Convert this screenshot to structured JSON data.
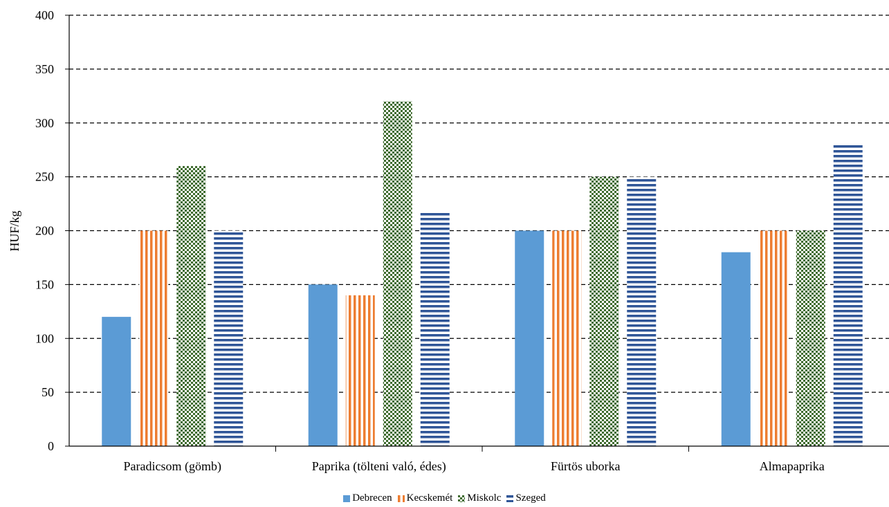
{
  "chart_data": {
    "type": "bar",
    "title": "",
    "xlabel": "",
    "ylabel": "HUF/kg",
    "ylim": [
      0,
      400
    ],
    "yticks": [
      0,
      50,
      100,
      150,
      200,
      250,
      300,
      350,
      400
    ],
    "grid": true,
    "legend_position": "bottom",
    "categories": [
      "Paradicsom (gömb)",
      "Paprika (tölteni való, édes)",
      "Fürtös uborka",
      "Almapaprika"
    ],
    "series": [
      {
        "name": "Debrecen",
        "values": [
          120,
          150,
          200,
          180
        ],
        "color": "#5B9BD5",
        "pattern": "solid"
      },
      {
        "name": "Kecskemét",
        "values": [
          200,
          140,
          200,
          200
        ],
        "color": "#ED7D31",
        "pattern": "vertical-stripes"
      },
      {
        "name": "Miskolc",
        "values": [
          260,
          320,
          250,
          200
        ],
        "color": "#3E6B2E",
        "pattern": "checker"
      },
      {
        "name": "Szeged",
        "values": [
          200,
          218,
          250,
          280
        ],
        "color": "#2F5597",
        "pattern": "horizontal-stripes"
      }
    ]
  }
}
